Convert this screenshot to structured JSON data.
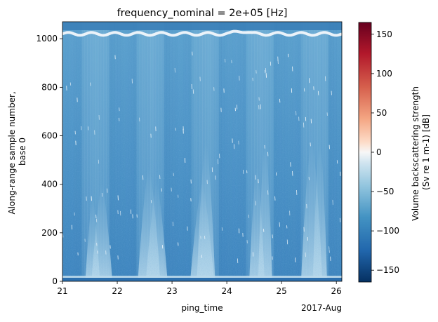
{
  "chart_data": {
    "type": "heatmap",
    "title": "frequency_nominal = 2e+05 [Hz]",
    "xlabel": "ping_time",
    "x_offset_label": "2017-Aug",
    "ylabel_lines": [
      "Along-range sample number,",
      "base 0"
    ],
    "xlim": [
      21.0,
      26.1
    ],
    "ylim": [
      0,
      1070
    ],
    "x_ticks": [
      "21",
      "22",
      "23",
      "24",
      "25",
      "26"
    ],
    "y_ticks": [
      "0",
      "200",
      "400",
      "600",
      "800",
      "1000"
    ],
    "colorbar": {
      "label_lines": [
        "Volume backscattering strength",
        "(Sv re 1 m-1) [dB]"
      ],
      "range": [
        -165,
        165
      ],
      "ticks": [
        "−150",
        "−100",
        "−50",
        "0",
        "50",
        "100",
        "150"
      ],
      "colormap": "RdBu_r"
    },
    "grid": false
  }
}
